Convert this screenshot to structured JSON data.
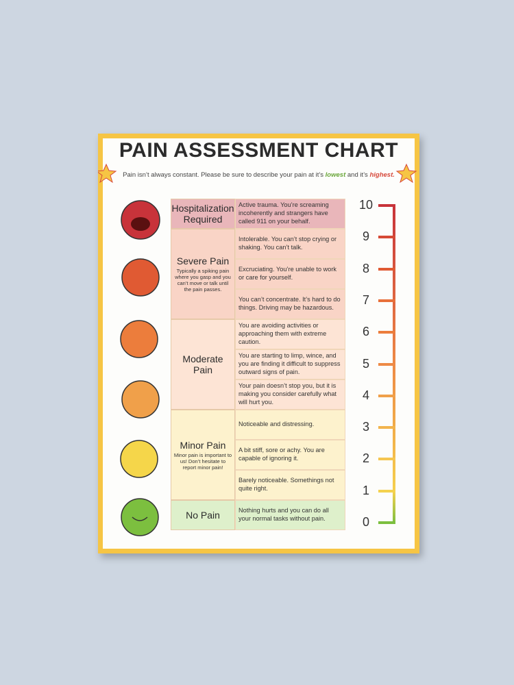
{
  "title": "PAIN ASSESSMENT CHART",
  "subtitle": {
    "before": "Pain isn’t always constant. Please be sure to describe your pain at it’s ",
    "lowest": "lowest",
    "middle": " and it’s ",
    "highest": "highest",
    "after": "."
  },
  "categories": [
    {
      "label": "Hospitalization Required",
      "levels": [
        {
          "score": 10,
          "description": "Active trauma. You’re screaming incoherently and strangers have called 911 on your behalf."
        }
      ]
    },
    {
      "label": "Severe Pain",
      "note": "Typically a spiking pain where you gasp and you can’t move or talk until the pain passes.",
      "levels": [
        {
          "score": 9,
          "description": "Intolerable. You can’t stop crying or shaking. You can’t talk."
        },
        {
          "score": 8,
          "description": "Excruciating. You’re unable to work or care for yourself."
        },
        {
          "score": 7,
          "description": "You can’t concentrate. It’s hard to do things. Driving may be hazardous."
        }
      ]
    },
    {
      "label": "Moderate Pain",
      "levels": [
        {
          "score": 6,
          "description": "You are avoiding activities or approaching them with extreme caution."
        },
        {
          "score": 5,
          "description": "You are starting to limp, wince, and you are finding it difficult to suppress outward signs of pain."
        },
        {
          "score": 4,
          "description": "Your pain doesn’t stop you, but it is making you consider carefully what will hurt you."
        }
      ]
    },
    {
      "label": "Minor Pain",
      "note": "Minor pain is important to us! Don’t hesitate to report minor pain!",
      "levels": [
        {
          "score": 3,
          "description": "Noticeable and distressing."
        },
        {
          "score": 2,
          "description": "A bit stiff, sore or achy. You are capable of ignoring it."
        },
        {
          "score": 1,
          "description": "Barely noticeable.  Somethings not quite right."
        }
      ]
    },
    {
      "label": "No Pain",
      "levels": [
        {
          "score": 0,
          "description": "Nothing hurts and you can do all your normal tasks without pain."
        }
      ]
    }
  ]
}
